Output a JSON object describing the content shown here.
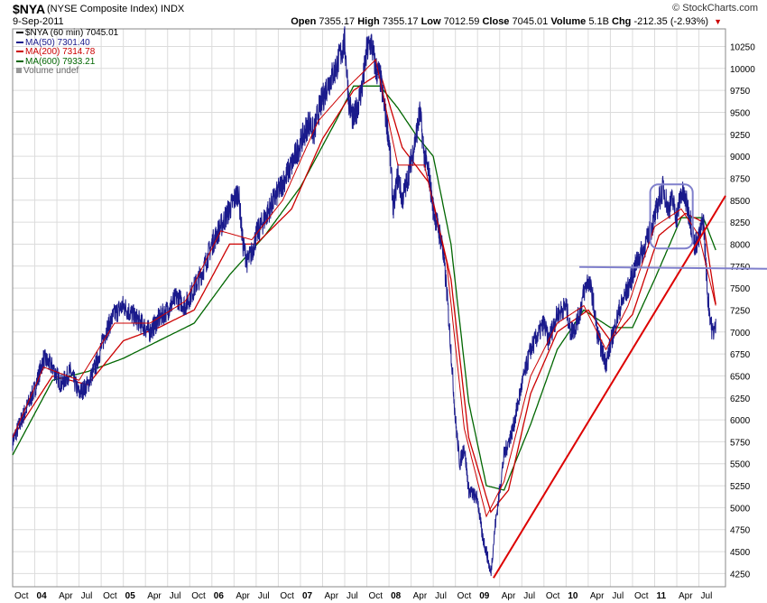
{
  "header": {
    "symbol": "$NYA",
    "name": "(NYSE Composite Index)",
    "exchange": "INDX",
    "date": "9-Sep-2011",
    "brand": "© StockCharts.com",
    "open_label": "Open",
    "open_value": "7355.17",
    "high_label": "High",
    "high_value": "7355.17",
    "low_label": "Low",
    "low_value": "7012.59",
    "close_label": "Close",
    "close_value": "7045.01",
    "volume_label": "Volume",
    "volume_value": "5.1B",
    "chg_label": "Chg",
    "chg_value": "-212.35 (-2.93%)",
    "down_arrow": "▼"
  },
  "legend": [
    {
      "text": "$NYA (60 min) 7045.01",
      "color": "#000000"
    },
    {
      "text": "MA(50) 7301.40",
      "color": "#1a1a8c"
    },
    {
      "text": "MA(200) 7314.78",
      "color": "#cc0000"
    },
    {
      "text": "MA(600) 7933.21",
      "color": "#006600"
    },
    {
      "text": "Volume undef",
      "color": "#666666"
    }
  ],
  "colors": {
    "price": "#1a1a8c",
    "ma50": "#cc0000",
    "ma200": "#cc0000",
    "ma600": "#006600",
    "trendline": "#dd0000",
    "support": "#8080cc",
    "grid": "#dcdcdc"
  },
  "chart_data": {
    "type": "line",
    "title": "$NYA (NYSE Composite Index) 60 min",
    "ylim": [
      4100,
      10450
    ],
    "yticks": [
      4250,
      4500,
      4750,
      5000,
      5250,
      5500,
      5750,
      6000,
      6250,
      6500,
      6750,
      7000,
      7250,
      7500,
      7750,
      8000,
      8250,
      8500,
      8750,
      9000,
      9250,
      9500,
      9750,
      10000,
      10250
    ],
    "xlim": [
      2003.75,
      2011.8
    ],
    "xticks": [
      {
        "label": "Oct",
        "t": 2003.75,
        "bold": false
      },
      {
        "label": "04",
        "t": 2004.0,
        "bold": true
      },
      {
        "label": "Apr",
        "t": 2004.25,
        "bold": false
      },
      {
        "label": "Jul",
        "t": 2004.5,
        "bold": false
      },
      {
        "label": "Oct",
        "t": 2004.75,
        "bold": false
      },
      {
        "label": "05",
        "t": 2005.0,
        "bold": true
      },
      {
        "label": "Apr",
        "t": 2005.25,
        "bold": false
      },
      {
        "label": "Jul",
        "t": 2005.5,
        "bold": false
      },
      {
        "label": "Oct",
        "t": 2005.75,
        "bold": false
      },
      {
        "label": "06",
        "t": 2006.0,
        "bold": true
      },
      {
        "label": "Apr",
        "t": 2006.25,
        "bold": false
      },
      {
        "label": "Jul",
        "t": 2006.5,
        "bold": false
      },
      {
        "label": "Oct",
        "t": 2006.75,
        "bold": false
      },
      {
        "label": "07",
        "t": 2007.0,
        "bold": true
      },
      {
        "label": "Apr",
        "t": 2007.25,
        "bold": false
      },
      {
        "label": "Jul",
        "t": 2007.5,
        "bold": false
      },
      {
        "label": "Oct",
        "t": 2007.75,
        "bold": false
      },
      {
        "label": "08",
        "t": 2008.0,
        "bold": true
      },
      {
        "label": "Apr",
        "t": 2008.25,
        "bold": false
      },
      {
        "label": "Jul",
        "t": 2008.5,
        "bold": false
      },
      {
        "label": "Oct",
        "t": 2008.75,
        "bold": false
      },
      {
        "label": "09",
        "t": 2009.0,
        "bold": true
      },
      {
        "label": "Apr",
        "t": 2009.25,
        "bold": false
      },
      {
        "label": "Jul",
        "t": 2009.5,
        "bold": false
      },
      {
        "label": "Oct",
        "t": 2009.75,
        "bold": false
      },
      {
        "label": "10",
        "t": 2010.0,
        "bold": true
      },
      {
        "label": "Apr",
        "t": 2010.25,
        "bold": false
      },
      {
        "label": "Jul",
        "t": 2010.5,
        "bold": false
      },
      {
        "label": "Oct",
        "t": 2010.75,
        "bold": false
      },
      {
        "label": "11",
        "t": 2011.0,
        "bold": true
      },
      {
        "label": "Apr",
        "t": 2011.25,
        "bold": false
      },
      {
        "label": "Jul",
        "t": 2011.5,
        "bold": false
      }
    ],
    "series": [
      {
        "name": "$NYA",
        "x": [
          2003.75,
          2003.85,
          2004.0,
          2004.1,
          2004.2,
          2004.3,
          2004.4,
          2004.5,
          2004.6,
          2004.7,
          2004.8,
          2004.9,
          2005.0,
          2005.1,
          2005.2,
          2005.3,
          2005.4,
          2005.5,
          2005.6,
          2005.7,
          2005.8,
          2005.9,
          2006.0,
          2006.1,
          2006.2,
          2006.3,
          2006.35,
          2006.4,
          2006.45,
          2006.5,
          2006.6,
          2006.7,
          2006.8,
          2006.9,
          2007.0,
          2007.1,
          2007.15,
          2007.2,
          2007.3,
          2007.4,
          2007.5,
          2007.55,
          2007.6,
          2007.7,
          2007.75,
          2007.8,
          2007.85,
          2007.9,
          2008.0,
          2008.05,
          2008.1,
          2008.15,
          2008.2,
          2008.3,
          2008.35,
          2008.4,
          2008.45,
          2008.5,
          2008.6,
          2008.65,
          2008.7,
          2008.75,
          2008.8,
          2008.85,
          2008.9,
          2009.0,
          2009.05,
          2009.1,
          2009.15,
          2009.2,
          2009.25,
          2009.3,
          2009.4,
          2009.5,
          2009.6,
          2009.7,
          2009.75,
          2009.8,
          2009.9,
          2010.0,
          2010.05,
          2010.1,
          2010.15,
          2010.2,
          2010.25,
          2010.3,
          2010.35,
          2010.4,
          2010.45,
          2010.5,
          2010.55,
          2010.6,
          2010.7,
          2010.8,
          2010.9,
          2011.0,
          2011.05,
          2011.1,
          2011.15,
          2011.2,
          2011.25,
          2011.3,
          2011.35,
          2011.4,
          2011.45,
          2011.5,
          2011.55,
          2011.6,
          2011.65,
          2011.69
        ],
        "values": [
          5750,
          6000,
          6350,
          6700,
          6600,
          6400,
          6550,
          6300,
          6400,
          6650,
          7000,
          7200,
          7300,
          7200,
          7100,
          7000,
          7150,
          7250,
          7400,
          7300,
          7500,
          7700,
          8000,
          8200,
          8400,
          8600,
          8000,
          7800,
          7900,
          8100,
          8300,
          8500,
          8700,
          8900,
          9150,
          9400,
          9250,
          9500,
          9800,
          10000,
          10300,
          9600,
          9400,
          9800,
          10200,
          10300,
          10000,
          9900,
          9200,
          8400,
          8800,
          8500,
          8700,
          9200,
          9500,
          9000,
          8800,
          8400,
          8000,
          7500,
          6800,
          6000,
          5500,
          5700,
          5200,
          5100,
          4700,
          4500,
          4250,
          4800,
          5200,
          5600,
          5900,
          6400,
          6800,
          7000,
          7100,
          6900,
          7200,
          7300,
          7000,
          7050,
          7200,
          7450,
          7600,
          7400,
          7000,
          6800,
          6650,
          6850,
          7050,
          7250,
          7500,
          7800,
          8000,
          8300,
          8500,
          8650,
          8400,
          8500,
          8300,
          8600,
          8500,
          8300,
          8000,
          8050,
          8300,
          7400,
          7000,
          7045
        ]
      },
      {
        "name": "MA(50)",
        "x": [
          2003.75,
          2004.1,
          2004.5,
          2004.9,
          2005.3,
          2005.7,
          2006.1,
          2006.45,
          2006.8,
          2007.2,
          2007.55,
          2007.85,
          2008.1,
          2008.4,
          2008.65,
          2008.85,
          2009.1,
          2009.3,
          2009.6,
          2009.9,
          2010.2,
          2010.45,
          2010.7,
          2011.0,
          2011.3,
          2011.5,
          2011.69
        ],
        "values": [
          5800,
          6600,
          6450,
          7100,
          7100,
          7350,
          8150,
          8050,
          8500,
          9400,
          9800,
          10100,
          8900,
          8900,
          7800,
          5900,
          4900,
          5300,
          6500,
          7100,
          7300,
          6800,
          7300,
          8200,
          8400,
          8100,
          7301
        ]
      },
      {
        "name": "MA(200)",
        "x": [
          2003.75,
          2004.2,
          2004.6,
          2005.0,
          2005.4,
          2005.8,
          2006.2,
          2006.5,
          2006.9,
          2007.25,
          2007.6,
          2007.9,
          2008.15,
          2008.45,
          2008.7,
          2008.9,
          2009.15,
          2009.35,
          2009.6,
          2009.9,
          2010.25,
          2010.5,
          2010.75,
          2011.05,
          2011.35,
          2011.55,
          2011.69
        ],
        "values": [
          5800,
          6500,
          6400,
          6900,
          7050,
          7250,
          8000,
          8000,
          8400,
          9200,
          9750,
          9950,
          9100,
          8700,
          7600,
          5800,
          4950,
          5200,
          6300,
          7000,
          7250,
          6900,
          7200,
          8100,
          8350,
          8250,
          7314
        ]
      },
      {
        "name": "MA(600)",
        "x": [
          2003.75,
          2004.2,
          2004.6,
          2005.0,
          2005.4,
          2005.8,
          2006.2,
          2006.6,
          2007.0,
          2007.4,
          2007.6,
          2007.9,
          2008.1,
          2008.3,
          2008.5,
          2008.7,
          2008.9,
          2009.1,
          2009.3,
          2009.6,
          2009.9,
          2010.2,
          2010.5,
          2010.75,
          2011.0,
          2011.3,
          2011.55,
          2011.69
        ],
        "values": [
          5600,
          6450,
          6550,
          6700,
          6900,
          7100,
          7650,
          8100,
          8650,
          9400,
          9800,
          9800,
          9550,
          9250,
          9000,
          8000,
          6200,
          5250,
          5200,
          5950,
          6800,
          7250,
          7050,
          7050,
          7600,
          8300,
          8300,
          7933
        ]
      }
    ],
    "trendline": {
      "x": [
        2009.18,
        2011.8
      ],
      "values": [
        4200,
        8550
      ]
    },
    "support_line": {
      "x": [
        2010.15,
        2011.8
      ],
      "values": [
        7740,
        7720
      ]
    },
    "highlight_box": {
      "x": [
        2010.95,
        2011.43
      ],
      "values": [
        7950,
        8680
      ]
    }
  }
}
